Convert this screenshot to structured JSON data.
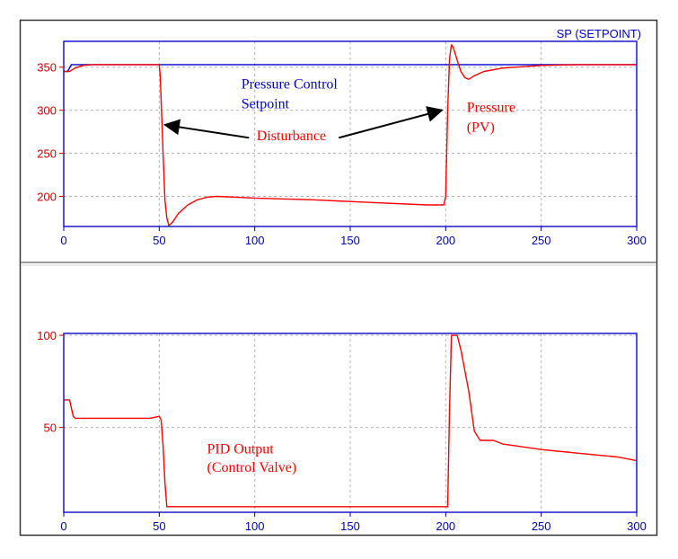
{
  "colors": {
    "sp": "#0000cc",
    "pv": "#ff0000",
    "frame": "#1a1acc",
    "grid": "#b4b4b4",
    "tick_y": "#cc0000",
    "tick_x": "#0000aa",
    "divider": "#9a9a9a",
    "arrow": "#000000"
  },
  "chart_data": [
    {
      "type": "line",
      "panel": "top",
      "series_label": "SP (SETPOINT)",
      "xlim": [
        0,
        300
      ],
      "ylim": [
        165,
        380
      ],
      "x_ticks": [
        0,
        50,
        100,
        150,
        200,
        250,
        300
      ],
      "y_ticks": [
        200,
        250,
        300,
        350
      ],
      "grid": true,
      "series": [
        {
          "name": "SP (SETPOINT)",
          "color": "#0000cc",
          "points": [
            [
              0,
              345
            ],
            [
              2,
              345
            ],
            [
              4,
              353
            ],
            [
              300,
              353
            ]
          ]
        },
        {
          "name": "",
          "color": "#ff0000",
          "points": [
            [
              0,
              345
            ],
            [
              3,
              345
            ],
            [
              6,
              349
            ],
            [
              10,
              352
            ],
            [
              15,
              353
            ],
            [
              50,
              353
            ],
            [
              50.5,
              340
            ],
            [
              51,
              310
            ],
            [
              52,
              250
            ],
            [
              53,
              195
            ],
            [
              54,
              175
            ],
            [
              55,
              166
            ],
            [
              57,
              170
            ],
            [
              60,
              180
            ],
            [
              65,
              190
            ],
            [
              70,
              196
            ],
            [
              75,
              199
            ],
            [
              80,
              200
            ],
            [
              100,
              198
            ],
            [
              130,
              196
            ],
            [
              160,
              193
            ],
            [
              190,
              190
            ],
            [
              199,
              190
            ],
            [
              200,
              200
            ],
            [
              201,
              300
            ],
            [
              202,
              360
            ],
            [
              203,
              376
            ],
            [
              204,
              373
            ],
            [
              206,
              358
            ],
            [
              208,
              345
            ],
            [
              210,
              338
            ],
            [
              212,
              336
            ],
            [
              215,
              340
            ],
            [
              220,
              345
            ],
            [
              230,
              349
            ],
            [
              250,
              352
            ],
            [
              270,
              353
            ],
            [
              300,
              353
            ]
          ]
        }
      ],
      "annotations": [
        {
          "text": "Pressure Control",
          "x": 93,
          "y": 325,
          "color": "#0000cc"
        },
        {
          "text": "Setpoint",
          "x": 93,
          "y": 302,
          "color": "#0000cc"
        },
        {
          "text": "Disturbance",
          "x": 101,
          "y": 265,
          "color": "#ff0000"
        },
        {
          "text": "Pressure",
          "x": 211,
          "y": 298,
          "color": "#ff0000"
        },
        {
          "text": "(PV)",
          "x": 211,
          "y": 275,
          "color": "#ff0000"
        }
      ],
      "arrows": [
        {
          "from": [
            97,
            268
          ],
          "to": [
            53,
            283
          ]
        },
        {
          "from": [
            144,
            268
          ],
          "to": [
            198,
            300
          ]
        }
      ]
    },
    {
      "type": "line",
      "panel": "bottom",
      "xlim": [
        0,
        300
      ],
      "ylim": [
        4,
        101
      ],
      "x_ticks": [
        0,
        50,
        100,
        150,
        200,
        250,
        300
      ],
      "y_ticks": [
        50,
        100
      ],
      "grid": true,
      "series": [
        {
          "name": "",
          "color": "#ff0000",
          "points": [
            [
              0,
              65
            ],
            [
              3,
              65
            ],
            [
              5,
              56
            ],
            [
              6,
              55
            ],
            [
              45,
              55
            ],
            [
              50,
              56
            ],
            [
              51,
              54
            ],
            [
              52,
              40
            ],
            [
              53,
              20
            ],
            [
              54,
              7
            ],
            [
              200,
              7
            ],
            [
              201,
              7
            ],
            [
              202,
              60
            ],
            [
              203,
              100
            ],
            [
              206,
              100
            ],
            [
              208,
              92
            ],
            [
              212,
              70
            ],
            [
              215,
              48
            ],
            [
              218,
              43
            ],
            [
              225,
              43
            ],
            [
              230,
              41
            ],
            [
              250,
              38
            ],
            [
              270,
              36
            ],
            [
              290,
              34
            ],
            [
              300,
              32
            ]
          ]
        }
      ],
      "annotations": [
        {
          "text": "PID Output",
          "x": 75,
          "y": 36,
          "color": "#ff0000"
        },
        {
          "text": "(Control Valve)",
          "x": 75,
          "y": 26,
          "color": "#ff0000"
        }
      ]
    }
  ]
}
